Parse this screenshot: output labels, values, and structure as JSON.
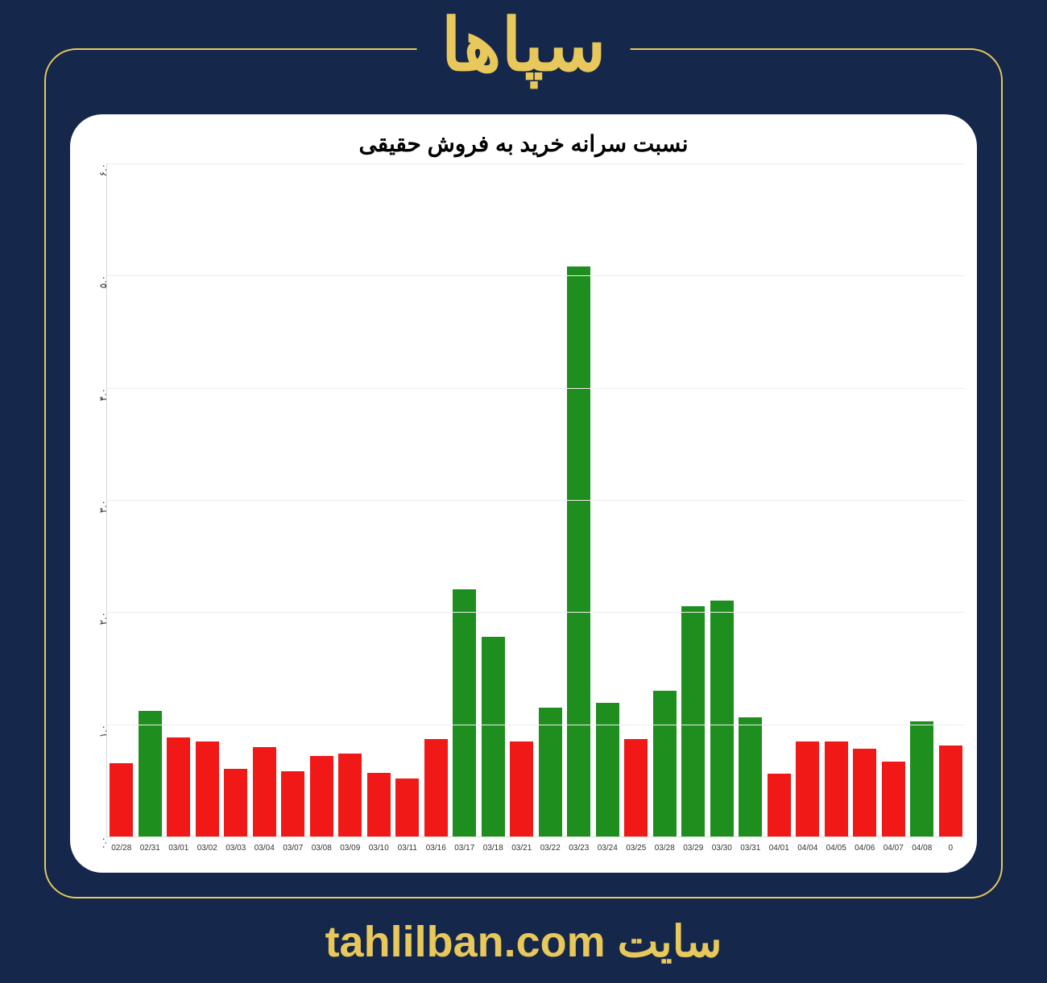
{
  "header": {
    "title": "سپاها"
  },
  "footer": {
    "prefix": "سایت",
    "domain": "tahlilban.com"
  },
  "chart": {
    "type": "bar",
    "title": "نسبت سرانه خرید به فروش حقیقی",
    "title_fontsize": 28,
    "background_color": "#ffffff",
    "page_background": "#15284b",
    "accent_color": "#e8c85a",
    "grid_color": "#eeeeee",
    "axis_color": "#d8d8d8",
    "ylim": [
      0,
      6
    ],
    "ytick_step": 1,
    "yticks": [
      "۰.۰",
      "۱.۰",
      "۲.۰",
      "۳.۰",
      "۴.۰",
      "۵.۰",
      "۶.۰"
    ],
    "bar_width": 0.82,
    "green": "#1e8f1e",
    "red": "#f11818",
    "categories": [
      "02/28",
      "02/31",
      "03/01",
      "03/02",
      "03/03",
      "03/04",
      "03/07",
      "03/08",
      "03/09",
      "03/10",
      "03/11",
      "03/16",
      "03/17",
      "03/18",
      "03/21",
      "03/22",
      "03/23",
      "03/24",
      "03/25",
      "03/28",
      "03/29",
      "03/30",
      "03/31",
      "04/01",
      "04/04",
      "04/05",
      "04/06",
      "04/07",
      "04/08",
      "0"
    ],
    "values": [
      0.65,
      1.12,
      0.88,
      0.85,
      0.6,
      0.8,
      0.58,
      0.72,
      0.74,
      0.57,
      0.52,
      0.87,
      2.2,
      1.78,
      0.85,
      1.15,
      5.08,
      1.19,
      0.87,
      1.3,
      2.05,
      2.1,
      1.06,
      0.56,
      0.85,
      0.85,
      0.78,
      0.67,
      1.03,
      0.81
    ],
    "bar_colors": [
      "#f11818",
      "#1e8f1e",
      "#f11818",
      "#f11818",
      "#f11818",
      "#f11818",
      "#f11818",
      "#f11818",
      "#f11818",
      "#f11818",
      "#f11818",
      "#f11818",
      "#1e8f1e",
      "#1e8f1e",
      "#f11818",
      "#1e8f1e",
      "#1e8f1e",
      "#1e8f1e",
      "#f11818",
      "#1e8f1e",
      "#1e8f1e",
      "#1e8f1e",
      "#1e8f1e",
      "#f11818",
      "#f11818",
      "#f11818",
      "#f11818",
      "#f11818",
      "#1e8f1e",
      "#f11818"
    ],
    "xlabel_fontsize": 10,
    "ylabel_fontsize": 12
  }
}
